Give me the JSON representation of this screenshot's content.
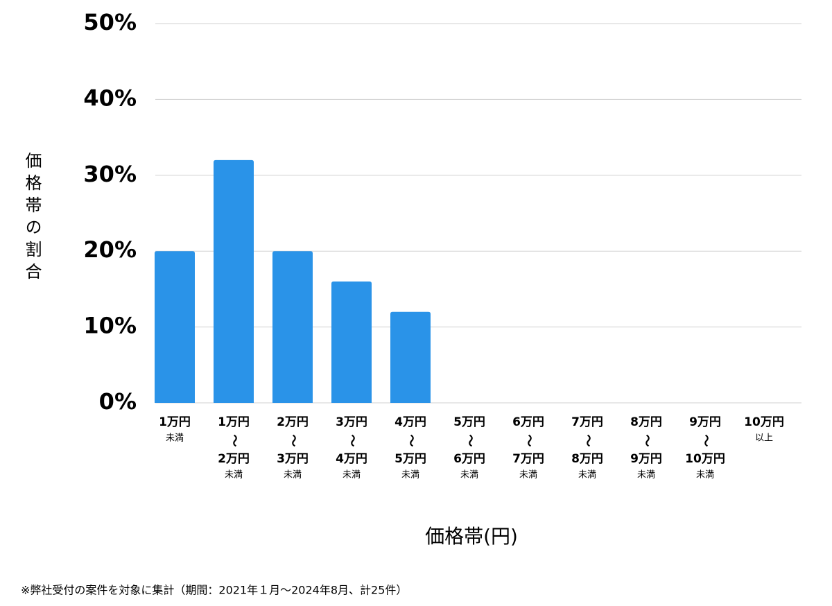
{
  "chart_data": {
    "type": "bar",
    "y_label": "価格帯の割合",
    "x_label": "価格帯(円)",
    "note": "※弊社受付の案件を対象に集計（期間：2021年１月〜2024年8月、計25件）",
    "categories": [
      [
        "1万円",
        "未満"
      ],
      [
        "1万円",
        "〜",
        "2万円",
        "未満"
      ],
      [
        "2万円",
        "〜",
        "3万円",
        "未満"
      ],
      [
        "3万円",
        "〜",
        "4万円",
        "未満"
      ],
      [
        "4万円",
        "〜",
        "5万円",
        "未満"
      ],
      [
        "5万円",
        "〜",
        "6万円",
        "未満"
      ],
      [
        "6万円",
        "〜",
        "7万円",
        "未満"
      ],
      [
        "7万円",
        "〜",
        "8万円",
        "未満"
      ],
      [
        "8万円",
        "〜",
        "9万円",
        "未満"
      ],
      [
        "9万円",
        "〜",
        "10万円",
        "未満"
      ],
      [
        "10万円",
        "以上"
      ]
    ],
    "values": [
      20,
      32,
      20,
      16,
      12,
      0,
      0,
      0,
      0,
      0,
      0
    ],
    "color": "#2a93e8",
    "ylim": [
      0,
      50
    ],
    "yticks": [
      {
        "value": 0,
        "label": "0%"
      },
      {
        "value": 10,
        "label": "10%"
      },
      {
        "value": 20,
        "label": "20%"
      },
      {
        "value": 30,
        "label": "30%"
      },
      {
        "value": 40,
        "label": "40%"
      },
      {
        "value": 50,
        "label": "50%"
      }
    ],
    "grid": true
  }
}
